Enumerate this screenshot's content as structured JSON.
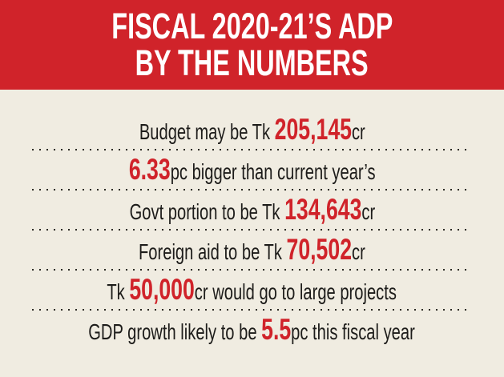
{
  "theme": {
    "banner_red": "#d0232a",
    "value_red": "#d0232a",
    "background_cream": "#f0ece1",
    "text_black": "#1d1c1a",
    "dot_color": "#2b2a24"
  },
  "header": {
    "line1": "FISCAL 2020-21’S ADP",
    "line2": "BY THE NUMBERS"
  },
  "rows": [
    {
      "pre": "Budget may be Tk ",
      "value": "205,145",
      "post": "cr"
    },
    {
      "pre": "",
      "value": "6.33",
      "post": "pc bigger than current year’s"
    },
    {
      "pre": "Govt portion to be Tk ",
      "value": "134,643",
      "post": "cr"
    },
    {
      "pre": "Foreign aid to be Tk ",
      "value": "70,502",
      "post": "cr"
    },
    {
      "pre": "Tk ",
      "value": "50,000",
      "post": "cr would go to large projects"
    },
    {
      "pre": "GDP growth likely to be ",
      "value": "5.5",
      "post": "pc this fiscal year"
    }
  ],
  "chart_data": {
    "type": "table",
    "title": "FISCAL 2020-21'S ADP BY THE NUMBERS",
    "rows": [
      {
        "label": "Budget may be Tk 205,145cr",
        "value": 205145,
        "unit": "Tk cr"
      },
      {
        "label": "6.33pc bigger than current year's",
        "value": 6.33,
        "unit": "pc"
      },
      {
        "label": "Govt portion to be Tk 134,643cr",
        "value": 134643,
        "unit": "Tk cr"
      },
      {
        "label": "Foreign aid to be Tk 70,502cr",
        "value": 70502,
        "unit": "Tk cr"
      },
      {
        "label": "Tk 50,000cr would go to large projects",
        "value": 50000,
        "unit": "Tk cr"
      },
      {
        "label": "GDP growth likely to be 5.5pc this fiscal year",
        "value": 5.5,
        "unit": "pc"
      }
    ]
  }
}
